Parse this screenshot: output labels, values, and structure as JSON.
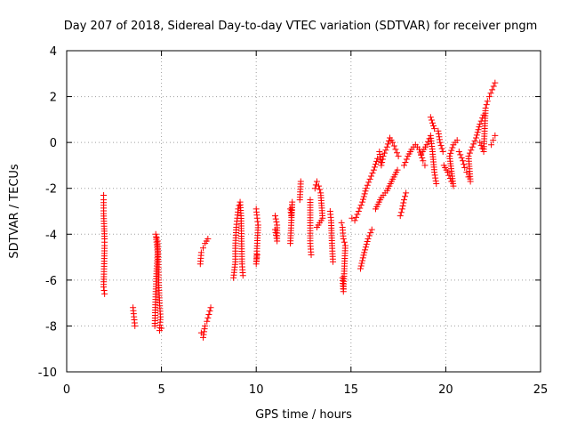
{
  "chart_data": {
    "type": "scatter",
    "title": "Day 207 of 2018, Sidereal Day-to-day VTEC variation (SDTVAR) for receiver pngm",
    "xlabel": "GPS time / hours",
    "ylabel": "SDTVAR / TECUs",
    "xlim": [
      0,
      25
    ],
    "ylim": [
      -10,
      4
    ],
    "xticks": [
      "0",
      "5",
      "10",
      "15",
      "20",
      "25"
    ],
    "yticks": [
      "4",
      "2",
      "0",
      "-2",
      "-4",
      "-6",
      "-8",
      "-10"
    ],
    "grid": true,
    "marker": "+",
    "color": "#ff0000",
    "series": [
      {
        "name": "SDTVAR",
        "segments": [
          [
            [
              1.95,
              -2.3
            ],
            [
              1.95,
              -2.5
            ],
            [
              1.95,
              -3.1
            ],
            [
              2.0,
              -4.2
            ],
            [
              2.0,
              -4.5
            ],
            [
              1.95,
              -6.3
            ],
            [
              2.0,
              -6.6
            ]
          ],
          [
            [
              3.5,
              -7.2
            ],
            [
              3.55,
              -7.6
            ],
            [
              3.6,
              -8.0
            ]
          ],
          [
            [
              4.65,
              -8.0
            ],
            [
              4.7,
              -6.5
            ],
            [
              4.75,
              -5.5
            ],
            [
              4.8,
              -4.8
            ],
            [
              4.7,
              -4.0
            ],
            [
              4.8,
              -4.3
            ],
            [
              4.85,
              -6.0
            ],
            [
              4.9,
              -7.0
            ],
            [
              4.95,
              -7.6
            ],
            [
              4.9,
              -8.2
            ],
            [
              5.0,
              -8.1
            ]
          ],
          [
            [
              7.05,
              -5.3
            ],
            [
              7.1,
              -4.8
            ],
            [
              7.2,
              -4.6
            ],
            [
              7.3,
              -4.4
            ],
            [
              7.45,
              -4.2
            ]
          ],
          [
            [
              7.1,
              -8.3
            ],
            [
              7.2,
              -8.5
            ],
            [
              7.3,
              -8.0
            ],
            [
              7.4,
              -7.8
            ],
            [
              7.5,
              -7.5
            ],
            [
              7.6,
              -7.2
            ]
          ],
          [
            [
              8.8,
              -5.9
            ],
            [
              8.9,
              -5.2
            ],
            [
              8.9,
              -4.5
            ],
            [
              8.95,
              -3.7
            ],
            [
              9.0,
              -3.3
            ],
            [
              9.05,
              -2.9
            ],
            [
              9.15,
              -2.6
            ],
            [
              9.2,
              -3.2
            ],
            [
              9.25,
              -5.3
            ],
            [
              9.3,
              -5.8
            ]
          ],
          [
            [
              10.0,
              -2.9
            ],
            [
              10.05,
              -3.3
            ],
            [
              10.1,
              -3.6
            ],
            [
              10.0,
              -5.3
            ],
            [
              10.05,
              -4.9
            ]
          ],
          [
            [
              11.0,
              -3.2
            ],
            [
              11.1,
              -3.6
            ],
            [
              11.1,
              -4.3
            ],
            [
              11.0,
              -3.8
            ]
          ],
          [
            [
              11.8,
              -2.9
            ],
            [
              11.85,
              -3.2
            ],
            [
              11.9,
              -2.6
            ],
            [
              11.8,
              -4.4
            ]
          ],
          [
            [
              12.3,
              -2.5
            ],
            [
              12.35,
              -1.7
            ]
          ],
          [
            [
              12.85,
              -2.5
            ],
            [
              12.85,
              -4.4
            ],
            [
              12.9,
              -4.9
            ]
          ],
          [
            [
              13.1,
              -2.0
            ],
            [
              13.2,
              -1.7
            ],
            [
              13.3,
              -1.9
            ],
            [
              13.4,
              -2.2
            ],
            [
              13.5,
              -3.3
            ],
            [
              13.2,
              -3.7
            ]
          ],
          [
            [
              13.9,
              -3.0
            ],
            [
              13.95,
              -3.4
            ],
            [
              14.0,
              -4.5
            ],
            [
              14.05,
              -5.2
            ]
          ],
          [
            [
              14.5,
              -3.5
            ],
            [
              14.55,
              -3.7
            ],
            [
              14.6,
              -4.2
            ],
            [
              14.7,
              -4.5
            ],
            [
              14.6,
              -6.5
            ],
            [
              14.55,
              -5.9
            ]
          ],
          [
            [
              15.05,
              -3.3
            ],
            [
              15.2,
              -3.4
            ],
            [
              15.4,
              -3.0
            ],
            [
              15.6,
              -2.6
            ],
            [
              15.8,
              -2.0
            ],
            [
              16.0,
              -1.6
            ],
            [
              16.2,
              -1.2
            ],
            [
              16.4,
              -0.7
            ]
          ],
          [
            [
              15.5,
              -5.5
            ],
            [
              15.7,
              -4.8
            ],
            [
              15.9,
              -4.2
            ],
            [
              16.1,
              -3.8
            ]
          ],
          [
            [
              16.5,
              -0.4
            ],
            [
              16.6,
              -1.0
            ],
            [
              16.7,
              -0.6
            ],
            [
              16.9,
              -0.2
            ],
            [
              17.05,
              0.2
            ],
            [
              17.2,
              0.0
            ],
            [
              17.35,
              -0.3
            ],
            [
              17.5,
              -0.6
            ]
          ],
          [
            [
              16.3,
              -2.9
            ],
            [
              16.6,
              -2.4
            ],
            [
              16.9,
              -2.1
            ],
            [
              17.2,
              -1.6
            ],
            [
              17.45,
              -1.2
            ]
          ],
          [
            [
              17.6,
              -3.2
            ],
            [
              17.7,
              -2.9
            ],
            [
              17.8,
              -2.5
            ],
            [
              17.9,
              -2.2
            ]
          ],
          [
            [
              17.8,
              -1.0
            ],
            [
              18.0,
              -0.6
            ],
            [
              18.2,
              -0.3
            ],
            [
              18.4,
              -0.1
            ],
            [
              18.6,
              -0.3
            ],
            [
              18.8,
              -0.8
            ],
            [
              18.9,
              -1.0
            ]
          ],
          [
            [
              18.7,
              -0.5
            ],
            [
              19.0,
              -0.1
            ],
            [
              19.2,
              0.3
            ],
            [
              19.3,
              -0.4
            ],
            [
              19.4,
              -1.3
            ],
            [
              19.5,
              -1.8
            ]
          ],
          [
            [
              19.2,
              1.1
            ],
            [
              19.4,
              0.6
            ],
            [
              19.6,
              0.5
            ],
            [
              19.7,
              0.0
            ],
            [
              19.85,
              -0.4
            ]
          ],
          [
            [
              19.9,
              -1.0
            ],
            [
              20.1,
              -1.3
            ],
            [
              20.3,
              -1.7
            ],
            [
              20.4,
              -1.9
            ],
            [
              20.2,
              -0.6
            ],
            [
              20.4,
              -0.1
            ],
            [
              20.6,
              0.1
            ]
          ],
          [
            [
              20.7,
              -0.4
            ],
            [
              20.9,
              -0.8
            ],
            [
              21.0,
              -1.1
            ]
          ],
          [
            [
              21.1,
              -1.3
            ],
            [
              21.2,
              -1.5
            ],
            [
              21.3,
              -1.7
            ],
            [
              21.2,
              -0.6
            ],
            [
              21.4,
              -0.2
            ],
            [
              21.6,
              0.2
            ],
            [
              21.8,
              0.8
            ],
            [
              22.0,
              1.2
            ]
          ],
          [
            [
              21.8,
              0.0
            ],
            [
              22.0,
              -0.4
            ],
            [
              22.1,
              1.5
            ],
            [
              22.2,
              1.8
            ],
            [
              22.3,
              2.0
            ],
            [
              22.45,
              2.3
            ],
            [
              22.6,
              2.6
            ]
          ],
          [
            [
              22.4,
              -0.1
            ],
            [
              22.5,
              0.1
            ],
            [
              22.6,
              0.3
            ]
          ]
        ]
      }
    ]
  }
}
